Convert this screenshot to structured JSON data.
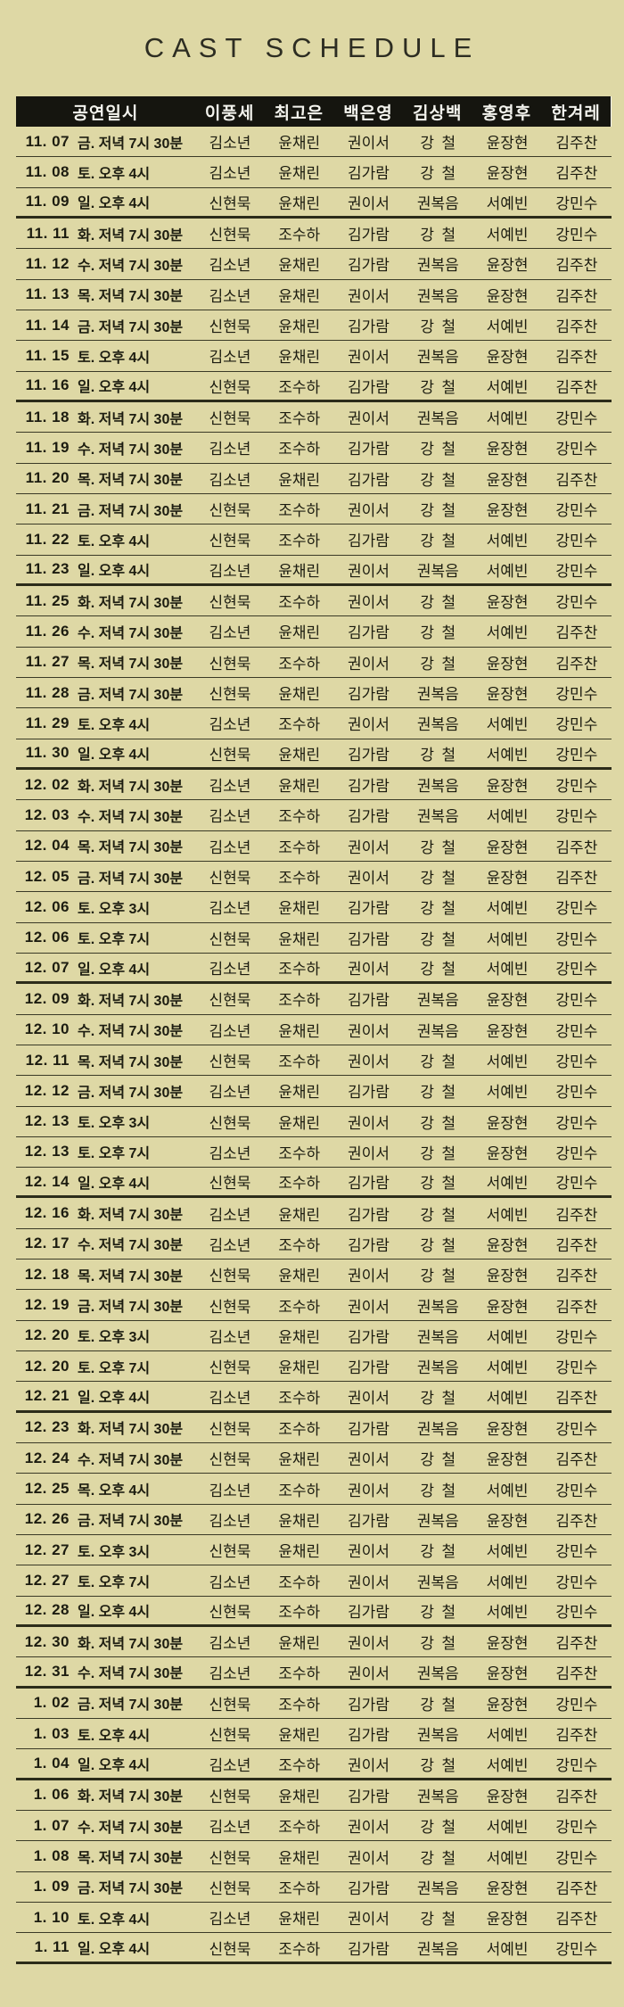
{
  "title": "CAST SCHEDULE",
  "colors": {
    "background": "#ded8a5",
    "header_bar": "#15150f",
    "header_text": "#f4f4ee",
    "body_text": "#1c1c10",
    "line_thin": "#3a3a26",
    "line_thick": "#2c2c1a"
  },
  "table": {
    "header": {
      "datetime_label": "공연일시",
      "roles": [
        "이풍세",
        "최고은",
        "백은영",
        "김상백",
        "홍영후",
        "한겨레"
      ]
    },
    "rows": [
      {
        "date": "11. 07",
        "daytime": "금. 저녁 7시 30분",
        "cast": [
          "김소년",
          "윤채린",
          "권이서",
          "강  철",
          "윤장현",
          "김주찬"
        ],
        "sep": "thin"
      },
      {
        "date": "11. 08",
        "daytime": "토. 오후 4시",
        "cast": [
          "김소년",
          "윤채린",
          "김가람",
          "강  철",
          "윤장현",
          "김주찬"
        ],
        "sep": "thin"
      },
      {
        "date": "11. 09",
        "daytime": "일. 오후 4시",
        "cast": [
          "신현묵",
          "윤채린",
          "권이서",
          "권복음",
          "서예빈",
          "강민수"
        ],
        "sep": "thick"
      },
      {
        "date": "11. 11",
        "daytime": "화. 저녁 7시 30분",
        "cast": [
          "신현묵",
          "조수하",
          "김가람",
          "강  철",
          "서예빈",
          "강민수"
        ],
        "sep": "thin"
      },
      {
        "date": "11. 12",
        "daytime": "수. 저녁 7시 30분",
        "cast": [
          "김소년",
          "윤채린",
          "김가람",
          "권복음",
          "윤장현",
          "김주찬"
        ],
        "sep": "thin"
      },
      {
        "date": "11. 13",
        "daytime": "목. 저녁 7시 30분",
        "cast": [
          "김소년",
          "윤채린",
          "권이서",
          "권복음",
          "윤장현",
          "김주찬"
        ],
        "sep": "thin"
      },
      {
        "date": "11. 14",
        "daytime": "금. 저녁 7시 30분",
        "cast": [
          "신현묵",
          "윤채린",
          "김가람",
          "강  철",
          "서예빈",
          "김주찬"
        ],
        "sep": "thin"
      },
      {
        "date": "11. 15",
        "daytime": "토. 오후 4시",
        "cast": [
          "김소년",
          "윤채린",
          "권이서",
          "권복음",
          "윤장현",
          "김주찬"
        ],
        "sep": "thin"
      },
      {
        "date": "11. 16",
        "daytime": "일. 오후 4시",
        "cast": [
          "신현묵",
          "조수하",
          "김가람",
          "강  철",
          "서예빈",
          "김주찬"
        ],
        "sep": "thick"
      },
      {
        "date": "11. 18",
        "daytime": "화. 저녁 7시 30분",
        "cast": [
          "신현묵",
          "조수하",
          "권이서",
          "권복음",
          "서예빈",
          "강민수"
        ],
        "sep": "thin"
      },
      {
        "date": "11. 19",
        "daytime": "수. 저녁 7시 30분",
        "cast": [
          "김소년",
          "조수하",
          "김가람",
          "강  철",
          "윤장현",
          "강민수"
        ],
        "sep": "thin"
      },
      {
        "date": "11. 20",
        "daytime": "목. 저녁 7시 30분",
        "cast": [
          "김소년",
          "윤채린",
          "김가람",
          "강  철",
          "윤장현",
          "김주찬"
        ],
        "sep": "thin"
      },
      {
        "date": "11. 21",
        "daytime": "금. 저녁 7시 30분",
        "cast": [
          "신현묵",
          "조수하",
          "권이서",
          "강  철",
          "윤장현",
          "강민수"
        ],
        "sep": "thin"
      },
      {
        "date": "11. 22",
        "daytime": "토. 오후 4시",
        "cast": [
          "신현묵",
          "조수하",
          "김가람",
          "강  철",
          "서예빈",
          "강민수"
        ],
        "sep": "thin"
      },
      {
        "date": "11. 23",
        "daytime": "일. 오후 4시",
        "cast": [
          "김소년",
          "윤채린",
          "권이서",
          "권복음",
          "서예빈",
          "강민수"
        ],
        "sep": "thick"
      },
      {
        "date": "11. 25",
        "daytime": "화. 저녁 7시 30분",
        "cast": [
          "신현묵",
          "조수하",
          "권이서",
          "강  철",
          "윤장현",
          "강민수"
        ],
        "sep": "thin"
      },
      {
        "date": "11. 26",
        "daytime": "수. 저녁 7시 30분",
        "cast": [
          "김소년",
          "윤채린",
          "김가람",
          "강  철",
          "서예빈",
          "김주찬"
        ],
        "sep": "thin"
      },
      {
        "date": "11. 27",
        "daytime": "목. 저녁 7시 30분",
        "cast": [
          "신현묵",
          "조수하",
          "권이서",
          "강  철",
          "윤장현",
          "김주찬"
        ],
        "sep": "thin"
      },
      {
        "date": "11. 28",
        "daytime": "금. 저녁 7시 30분",
        "cast": [
          "신현묵",
          "윤채린",
          "김가람",
          "권복음",
          "윤장현",
          "강민수"
        ],
        "sep": "thin"
      },
      {
        "date": "11. 29",
        "daytime": "토. 오후 4시",
        "cast": [
          "김소년",
          "조수하",
          "권이서",
          "권복음",
          "서예빈",
          "강민수"
        ],
        "sep": "thin"
      },
      {
        "date": "11. 30",
        "daytime": "일. 오후 4시",
        "cast": [
          "신현묵",
          "윤채린",
          "김가람",
          "강  철",
          "서예빈",
          "강민수"
        ],
        "sep": "thick"
      },
      {
        "date": "12. 02",
        "daytime": "화. 저녁 7시 30분",
        "cast": [
          "김소년",
          "윤채린",
          "김가람",
          "권복음",
          "윤장현",
          "강민수"
        ],
        "sep": "thin"
      },
      {
        "date": "12. 03",
        "daytime": "수. 저녁 7시 30분",
        "cast": [
          "김소년",
          "조수하",
          "김가람",
          "권복음",
          "서예빈",
          "강민수"
        ],
        "sep": "thin"
      },
      {
        "date": "12. 04",
        "daytime": "목. 저녁 7시 30분",
        "cast": [
          "김소년",
          "조수하",
          "권이서",
          "강  철",
          "윤장현",
          "김주찬"
        ],
        "sep": "thin"
      },
      {
        "date": "12. 05",
        "daytime": "금. 저녁 7시 30분",
        "cast": [
          "신현묵",
          "조수하",
          "권이서",
          "강  철",
          "윤장현",
          "김주찬"
        ],
        "sep": "thin"
      },
      {
        "date": "12. 06",
        "daytime": "토. 오후 3시",
        "cast": [
          "김소년",
          "윤채린",
          "김가람",
          "강  철",
          "서예빈",
          "강민수"
        ],
        "sep": "thin"
      },
      {
        "date": "12. 06",
        "daytime": "토. 오후 7시",
        "cast": [
          "신현묵",
          "윤채린",
          "김가람",
          "강  철",
          "서예빈",
          "강민수"
        ],
        "sep": "thin"
      },
      {
        "date": "12. 07",
        "daytime": "일. 오후 4시",
        "cast": [
          "김소년",
          "조수하",
          "권이서",
          "강  철",
          "서예빈",
          "강민수"
        ],
        "sep": "thick"
      },
      {
        "date": "12. 09",
        "daytime": "화. 저녁 7시 30분",
        "cast": [
          "신현묵",
          "조수하",
          "김가람",
          "권복음",
          "윤장현",
          "강민수"
        ],
        "sep": "thin"
      },
      {
        "date": "12. 10",
        "daytime": "수. 저녁 7시 30분",
        "cast": [
          "김소년",
          "윤채린",
          "권이서",
          "권복음",
          "윤장현",
          "강민수"
        ],
        "sep": "thin"
      },
      {
        "date": "12. 11",
        "daytime": "목. 저녁 7시 30분",
        "cast": [
          "신현묵",
          "조수하",
          "권이서",
          "강  철",
          "서예빈",
          "강민수"
        ],
        "sep": "thin"
      },
      {
        "date": "12. 12",
        "daytime": "금. 저녁 7시 30분",
        "cast": [
          "김소년",
          "윤채린",
          "김가람",
          "강  철",
          "서예빈",
          "강민수"
        ],
        "sep": "thin"
      },
      {
        "date": "12. 13",
        "daytime": "토. 오후 3시",
        "cast": [
          "신현묵",
          "윤채린",
          "권이서",
          "강  철",
          "윤장현",
          "강민수"
        ],
        "sep": "thin"
      },
      {
        "date": "12. 13",
        "daytime": "토. 오후 7시",
        "cast": [
          "김소년",
          "조수하",
          "권이서",
          "강  철",
          "윤장현",
          "강민수"
        ],
        "sep": "thin"
      },
      {
        "date": "12. 14",
        "daytime": "일. 오후 4시",
        "cast": [
          "신현묵",
          "조수하",
          "김가람",
          "강  철",
          "서예빈",
          "강민수"
        ],
        "sep": "thick"
      },
      {
        "date": "12. 16",
        "daytime": "화. 저녁 7시 30분",
        "cast": [
          "김소년",
          "윤채린",
          "김가람",
          "강  철",
          "서예빈",
          "김주찬"
        ],
        "sep": "thin"
      },
      {
        "date": "12. 17",
        "daytime": "수. 저녁 7시 30분",
        "cast": [
          "김소년",
          "조수하",
          "김가람",
          "강  철",
          "윤장현",
          "김주찬"
        ],
        "sep": "thin"
      },
      {
        "date": "12. 18",
        "daytime": "목. 저녁 7시 30분",
        "cast": [
          "신현묵",
          "윤채린",
          "권이서",
          "강  철",
          "윤장현",
          "김주찬"
        ],
        "sep": "thin"
      },
      {
        "date": "12. 19",
        "daytime": "금. 저녁 7시 30분",
        "cast": [
          "신현묵",
          "조수하",
          "권이서",
          "권복음",
          "윤장현",
          "김주찬"
        ],
        "sep": "thin"
      },
      {
        "date": "12. 20",
        "daytime": "토. 오후 3시",
        "cast": [
          "김소년",
          "윤채린",
          "김가람",
          "권복음",
          "서예빈",
          "강민수"
        ],
        "sep": "thin"
      },
      {
        "date": "12. 20",
        "daytime": "토. 오후 7시",
        "cast": [
          "신현묵",
          "윤채린",
          "김가람",
          "권복음",
          "서예빈",
          "강민수"
        ],
        "sep": "thin"
      },
      {
        "date": "12. 21",
        "daytime": "일. 오후 4시",
        "cast": [
          "김소년",
          "조수하",
          "권이서",
          "강  철",
          "서예빈",
          "김주찬"
        ],
        "sep": "thick"
      },
      {
        "date": "12. 23",
        "daytime": "화. 저녁 7시 30분",
        "cast": [
          "신현묵",
          "조수하",
          "김가람",
          "권복음",
          "윤장현",
          "강민수"
        ],
        "sep": "thin"
      },
      {
        "date": "12. 24",
        "daytime": "수. 저녁 7시 30분",
        "cast": [
          "신현묵",
          "윤채린",
          "권이서",
          "강  철",
          "윤장현",
          "김주찬"
        ],
        "sep": "thin"
      },
      {
        "date": "12. 25",
        "daytime": "목. 오후 4시",
        "cast": [
          "김소년",
          "조수하",
          "권이서",
          "강  철",
          "서예빈",
          "강민수"
        ],
        "sep": "thin"
      },
      {
        "date": "12. 26",
        "daytime": "금. 저녁 7시 30분",
        "cast": [
          "김소년",
          "윤채린",
          "김가람",
          "권복음",
          "윤장현",
          "김주찬"
        ],
        "sep": "thin"
      },
      {
        "date": "12. 27",
        "daytime": "토. 오후 3시",
        "cast": [
          "신현묵",
          "윤채린",
          "권이서",
          "강  철",
          "서예빈",
          "강민수"
        ],
        "sep": "thin"
      },
      {
        "date": "12. 27",
        "daytime": "토. 오후 7시",
        "cast": [
          "김소년",
          "조수하",
          "권이서",
          "권복음",
          "서예빈",
          "강민수"
        ],
        "sep": "thin"
      },
      {
        "date": "12. 28",
        "daytime": "일. 오후 4시",
        "cast": [
          "신현묵",
          "조수하",
          "김가람",
          "강  철",
          "서예빈",
          "강민수"
        ],
        "sep": "thick"
      },
      {
        "date": "12. 30",
        "daytime": "화. 저녁 7시 30분",
        "cast": [
          "김소년",
          "윤채린",
          "권이서",
          "강  철",
          "윤장현",
          "김주찬"
        ],
        "sep": "thin"
      },
      {
        "date": "12. 31",
        "daytime": "수. 저녁 7시 30분",
        "cast": [
          "김소년",
          "조수하",
          "권이서",
          "권복음",
          "윤장현",
          "김주찬"
        ],
        "sep": "thick"
      },
      {
        "date": "1. 02",
        "daytime": "금. 저녁 7시 30분",
        "cast": [
          "신현묵",
          "조수하",
          "김가람",
          "강  철",
          "윤장현",
          "강민수"
        ],
        "sep": "thin"
      },
      {
        "date": "1. 03",
        "daytime": "토. 오후 4시",
        "cast": [
          "신현묵",
          "윤채린",
          "김가람",
          "권복음",
          "서예빈",
          "김주찬"
        ],
        "sep": "thin"
      },
      {
        "date": "1. 04",
        "daytime": "일. 오후 4시",
        "cast": [
          "김소년",
          "조수하",
          "권이서",
          "강  철",
          "서예빈",
          "강민수"
        ],
        "sep": "thick"
      },
      {
        "date": "1. 06",
        "daytime": "화. 저녁 7시 30분",
        "cast": [
          "신현묵",
          "윤채린",
          "김가람",
          "권복음",
          "윤장현",
          "김주찬"
        ],
        "sep": "thin"
      },
      {
        "date": "1. 07",
        "daytime": "수. 저녁 7시 30분",
        "cast": [
          "김소년",
          "조수하",
          "권이서",
          "강  철",
          "서예빈",
          "강민수"
        ],
        "sep": "thin"
      },
      {
        "date": "1. 08",
        "daytime": "목. 저녁 7시 30분",
        "cast": [
          "신현묵",
          "윤채린",
          "권이서",
          "강  철",
          "서예빈",
          "강민수"
        ],
        "sep": "thin"
      },
      {
        "date": "1. 09",
        "daytime": "금. 저녁 7시 30분",
        "cast": [
          "신현묵",
          "조수하",
          "김가람",
          "권복음",
          "윤장현",
          "김주찬"
        ],
        "sep": "thin"
      },
      {
        "date": "1. 10",
        "daytime": "토. 오후 4시",
        "cast": [
          "김소년",
          "윤채린",
          "권이서",
          "강  철",
          "윤장현",
          "김주찬"
        ],
        "sep": "thin"
      },
      {
        "date": "1. 11",
        "daytime": "일. 오후 4시",
        "cast": [
          "신현묵",
          "조수하",
          "김가람",
          "권복음",
          "서예빈",
          "강민수"
        ],
        "sep": "thick"
      }
    ]
  }
}
